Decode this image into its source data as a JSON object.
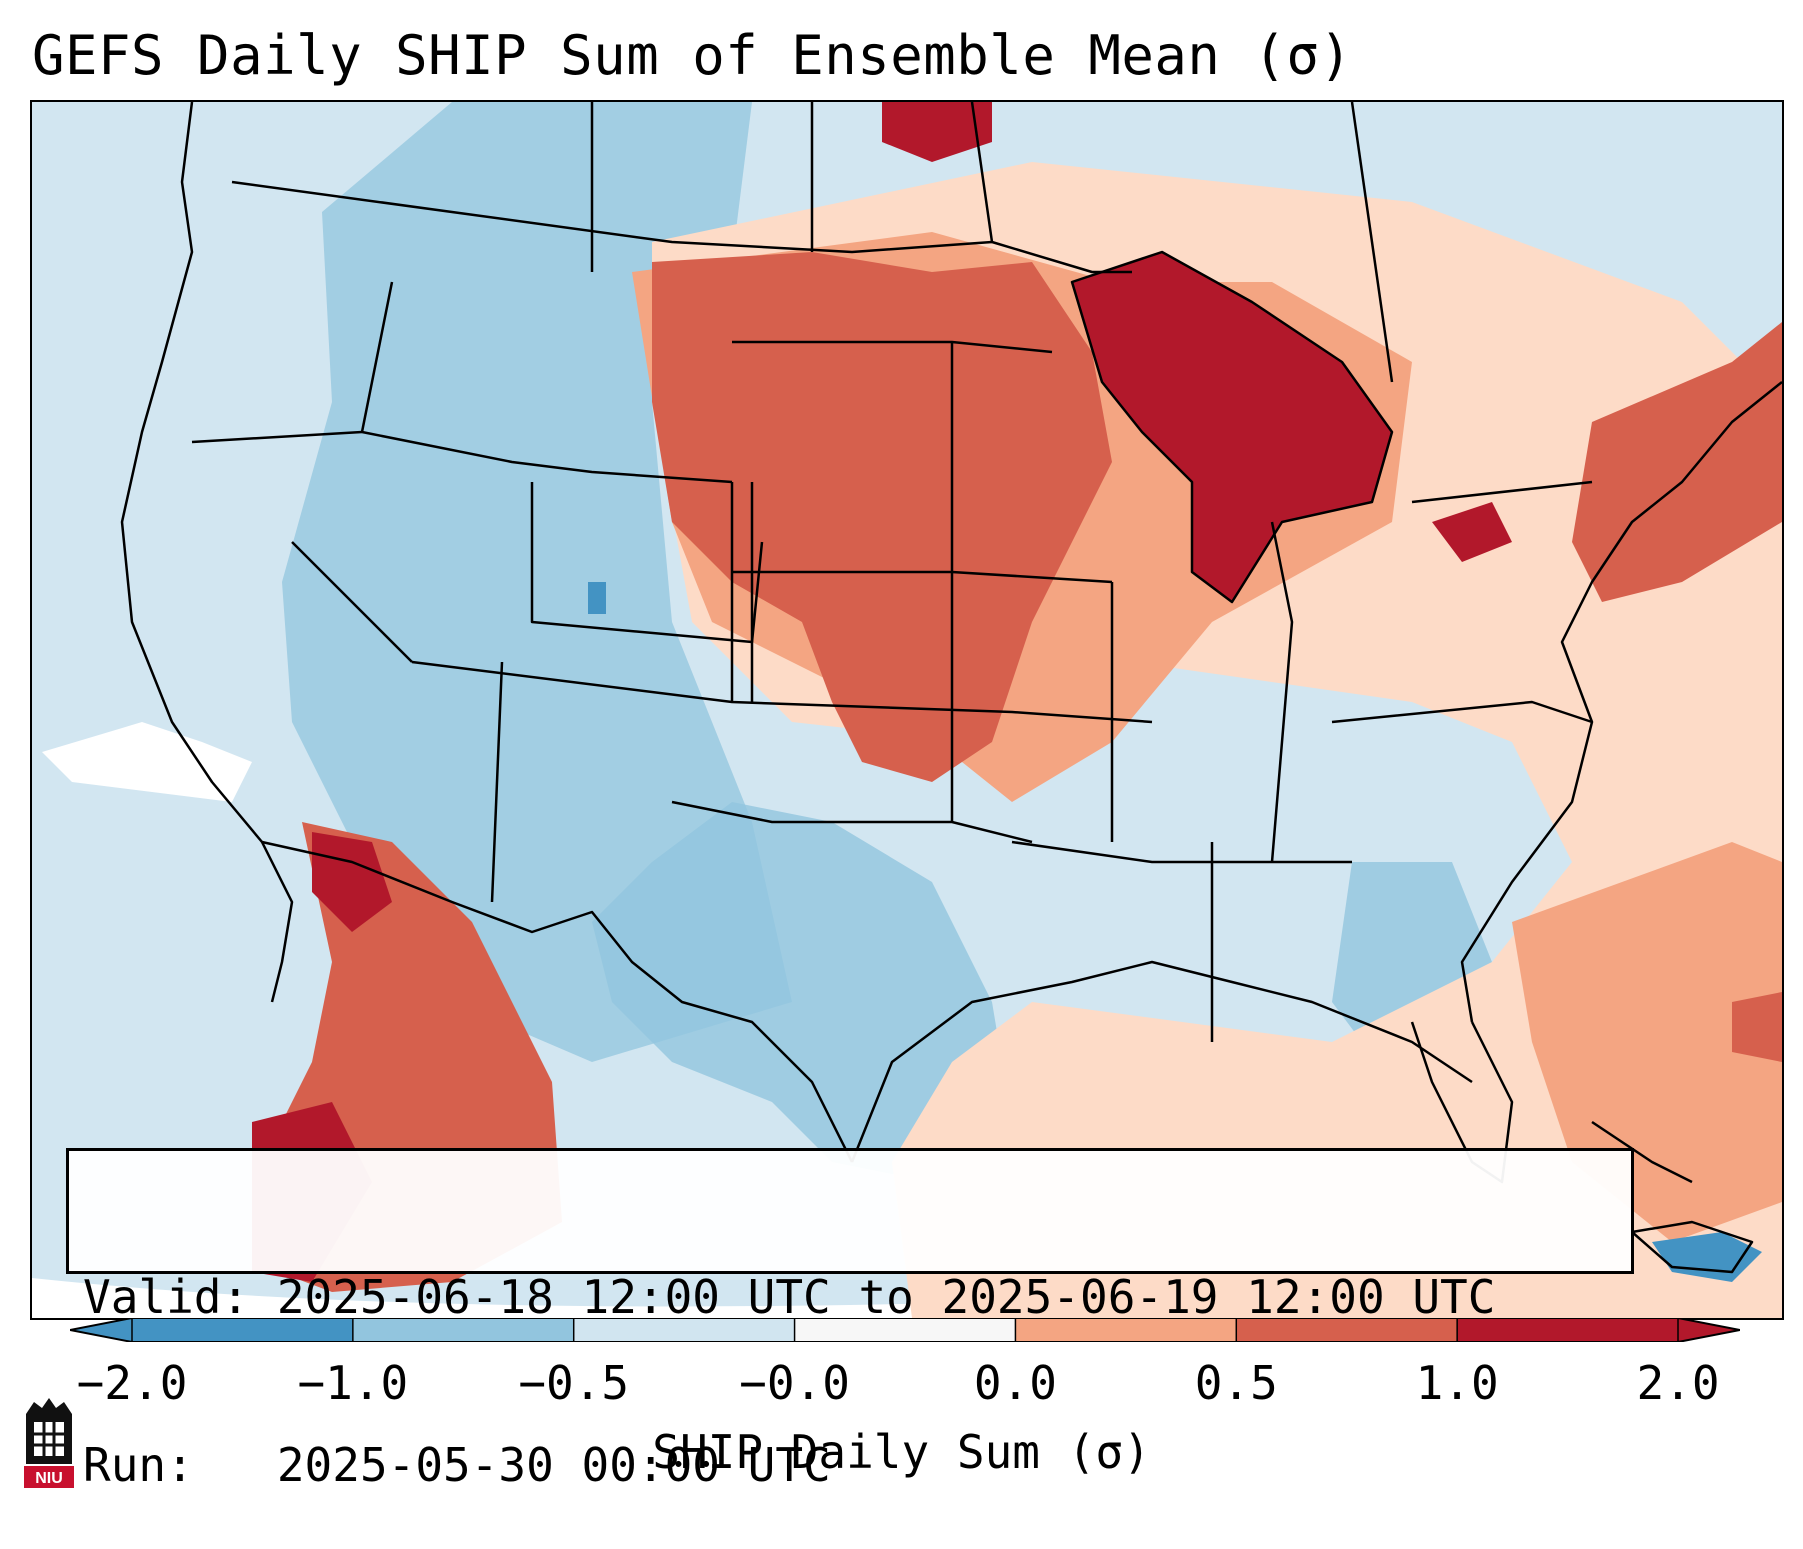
{
  "title": "GEFS Daily SHIP Sum of Ensemble Mean (σ)",
  "info": {
    "valid_line": "Valid: 2025-06-18 12:00 UTC to 2025-06-19 12:00 UTC",
    "run_line": "Run:   2025-05-30 00:00 UTC"
  },
  "colorbar": {
    "label": "SHIP Daily Sum (σ)",
    "ticks": [
      "−2.0",
      "−1.0",
      "−0.5",
      "−0.0",
      "0.0",
      "0.5",
      "1.0",
      "2.0"
    ],
    "colors": [
      "#4393c3",
      "#92c5de",
      "#d1e5f0",
      "#f7f7f7",
      "#fddbc7",
      "#f4a582",
      "#d6604d",
      "#b2182b"
    ]
  },
  "map": {
    "region": "Contiguous United States",
    "variable": "SHIP daily sum anomaly",
    "units": "σ"
  },
  "logo": {
    "text": "NIU"
  }
}
